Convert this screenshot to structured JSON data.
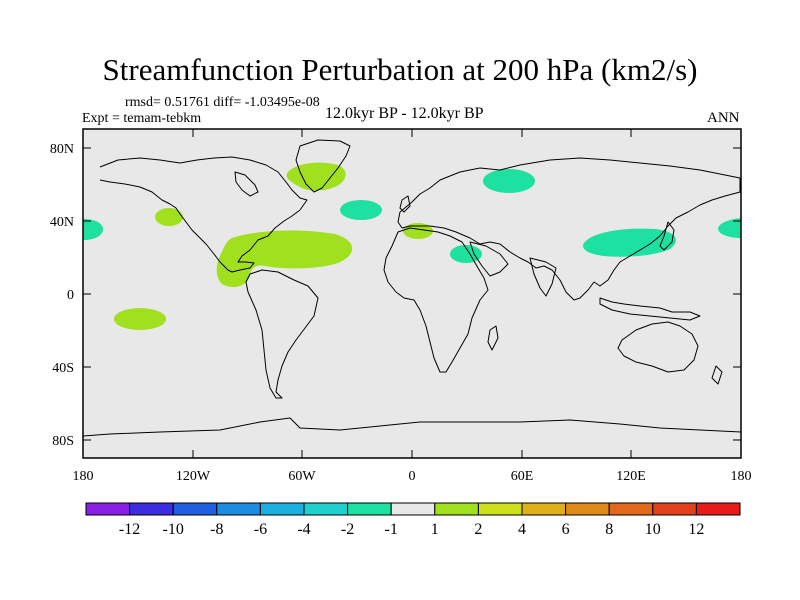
{
  "title": "Streamfunction Perturbation at 200 hPa (km2/s)",
  "stats": "rmsd= 0.51761 diff= -1.03495e-08",
  "expt": "Expt = temam-tebkm",
  "period": "12.0kyr BP - 12.0kyr BP",
  "season": "ANN",
  "lat_labels": [
    "80N",
    "40N",
    "0",
    "40S",
    "80S"
  ],
  "lon_labels": [
    "180",
    "120W",
    "60W",
    "0",
    "60E",
    "120E",
    "180"
  ],
  "colorbar": {
    "labels": [
      "-12",
      "-10",
      "-8",
      "-6",
      "-4",
      "-2",
      "-1",
      "1",
      "2",
      "4",
      "6",
      "8",
      "10",
      "12"
    ],
    "colors": [
      "#8b1fe6",
      "#3c2ee0",
      "#1f5fe0",
      "#1b8ce0",
      "#1bb0e0",
      "#1ed0d0",
      "#1ee0a0",
      "#e8e8e8",
      "#a0e01e",
      "#cce01a",
      "#e0b01a",
      "#e08a1a",
      "#e06a1a",
      "#e0401a",
      "#e81a1a"
    ]
  },
  "colors": {
    "map_background": "#e8e8e8",
    "positive_1_2": "#a0e01e",
    "negative_1_2": "#1ee0a0",
    "coastline": "#000000"
  }
}
